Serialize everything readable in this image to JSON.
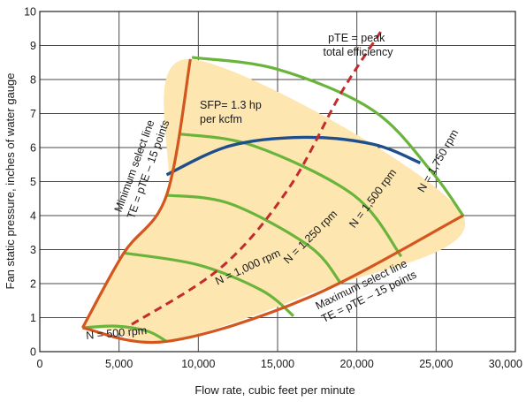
{
  "chart_data": {
    "type": "line",
    "title": "",
    "xlabel": "Flow rate, cubic feet per minute",
    "ylabel": "Fan static pressure, inches of water gauge",
    "xlim": [
      0,
      30000
    ],
    "ylim": [
      0,
      10
    ],
    "grid": true,
    "x_ticks": [
      0,
      5000,
      10000,
      15000,
      20000,
      25000,
      30000
    ],
    "x_tick_labels": [
      "0",
      "5,000",
      "10,000",
      "15,000",
      "20,000",
      "25,000",
      "30,000"
    ],
    "y_ticks": [
      0,
      1,
      2,
      3,
      4,
      5,
      6,
      7,
      8,
      9,
      10
    ],
    "y_tick_labels": [
      "0",
      "1",
      "2",
      "3",
      "4",
      "5",
      "6",
      "7",
      "8",
      "9",
      "10"
    ],
    "colors": {
      "select_line": "#d4561f",
      "speed_curve": "#6ab43c",
      "efficiency": "#c22c2c",
      "sfp": "#1f4e8c",
      "region_fill": "#fde6b0",
      "grid": "#4a4a4a"
    },
    "select_region": [
      [
        2700,
        0.7
      ],
      [
        5300,
        2.9
      ],
      [
        8000,
        4.5
      ],
      [
        9500,
        8.6
      ],
      [
        26700,
        4.0
      ],
      [
        17000,
        1.7
      ],
      [
        8000,
        0.3
      ],
      [
        4500,
        0.65
      ]
    ],
    "series": [
      {
        "role": "minimum_select_line",
        "points": [
          [
            2700,
            0.7
          ],
          [
            5300,
            2.9
          ],
          [
            8000,
            4.6
          ],
          [
            9500,
            8.6
          ]
        ]
      },
      {
        "role": "maximum_select_line",
        "points": [
          [
            2700,
            0.7
          ],
          [
            8000,
            0.3
          ],
          [
            17000,
            1.6
          ],
          [
            26700,
            4.0
          ]
        ]
      },
      {
        "role": "peak_efficiency_line",
        "points": [
          [
            5800,
            0.8
          ],
          [
            11500,
            2.5
          ],
          [
            15700,
            4.8
          ],
          [
            19000,
            7.6
          ],
          [
            21500,
            9.4
          ]
        ]
      },
      {
        "role": "sfp_line",
        "points": [
          [
            8000,
            5.2
          ],
          [
            12000,
            6.05
          ],
          [
            16700,
            6.3
          ],
          [
            21000,
            6.1
          ],
          [
            24000,
            5.55
          ]
        ]
      },
      {
        "role": "speed_curve",
        "label": "N = 500 rpm",
        "points": [
          [
            2700,
            0.7
          ],
          [
            4800,
            0.75
          ],
          [
            6800,
            0.6
          ],
          [
            8000,
            0.3
          ]
        ]
      },
      {
        "role": "speed_curve",
        "label": "N = 1,000 rpm",
        "points": [
          [
            5300,
            2.9
          ],
          [
            10000,
            2.55
          ],
          [
            14000,
            1.8
          ],
          [
            16000,
            1.05
          ]
        ]
      },
      {
        "role": "speed_curve",
        "label": "N = 1,250 rpm",
        "points": [
          [
            8000,
            4.6
          ],
          [
            12000,
            4.35
          ],
          [
            17000,
            3.1
          ],
          [
            19000,
            2.0
          ]
        ]
      },
      {
        "role": "speed_curve",
        "label": "N = 1,500 rpm",
        "points": [
          [
            8800,
            6.4
          ],
          [
            13500,
            6.05
          ],
          [
            19800,
            4.6
          ],
          [
            22800,
            2.8
          ]
        ]
      },
      {
        "role": "speed_curve",
        "label": "N = 1,750 rpm",
        "points": [
          [
            9600,
            8.65
          ],
          [
            15000,
            8.3
          ],
          [
            21000,
            7.1
          ],
          [
            24700,
            5.3
          ],
          [
            26700,
            4.0
          ]
        ]
      }
    ],
    "annotations": {
      "peak": [
        "pTE = peak",
        "total efficiency"
      ],
      "sfp": [
        "SFP= 1.3 hp",
        "per kcfm"
      ],
      "min_select": [
        "Minimum select line",
        "TE = pTE – 15 points"
      ],
      "max_select": [
        "Maximum select line",
        "TE = pTE – 15 points"
      ],
      "n500": "N = 500 rpm",
      "n1000": "N = 1,000 rpm",
      "n1250": "N = 1,250 rpm",
      "n1500": "N = 1,500 rpm",
      "n1750": "N = 1,750 rpm"
    }
  }
}
